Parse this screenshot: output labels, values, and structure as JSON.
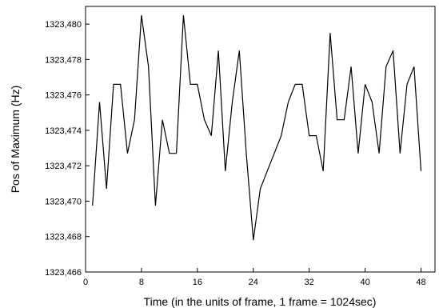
{
  "chart_data": {
    "type": "line",
    "title": "",
    "xlabel": "Time (in the units of frame, 1 frame = 1024sec)",
    "ylabel": "Pos of Maximum (Hz)",
    "xlim": [
      0,
      50
    ],
    "ylim": [
      1323466,
      1323481
    ],
    "xticks": [
      0,
      8,
      16,
      24,
      32,
      40,
      48
    ],
    "xtick_labels": [
      "0",
      "8",
      "16",
      "24",
      "32",
      "40",
      "48"
    ],
    "yticks": [
      1323466,
      1323468,
      1323470,
      1323472,
      1323474,
      1323476,
      1323478,
      1323480
    ],
    "ytick_labels": [
      "1323,466",
      "1323,468",
      "1323,470",
      "1323,472",
      "1323,474",
      "1323,476",
      "1323,478",
      "1323,480"
    ],
    "grid": false,
    "line_color": "#000000",
    "series": [
      {
        "x": [
          1,
          2,
          3,
          4,
          5,
          6,
          7,
          8,
          9,
          10,
          11,
          12,
          13,
          14,
          15,
          16,
          17,
          18,
          19,
          20,
          21,
          22,
          23,
          24,
          25,
          26,
          27,
          28,
          29,
          30,
          31,
          32,
          33,
          34,
          35,
          36,
          37,
          38,
          39,
          40,
          41,
          42,
          43,
          44,
          45,
          46,
          47,
          48
        ],
        "values": [
          1323469.75,
          1323475.6,
          1323470.7,
          1323476.6,
          1323476.6,
          1323472.7,
          1323474.6,
          1323480.5,
          1323477.6,
          1323469.75,
          1323474.6,
          1323472.7,
          1323472.7,
          1323480.5,
          1323476.6,
          1323476.6,
          1323474.6,
          1323473.7,
          1323478.5,
          1323471.7,
          1323475.6,
          1323478.5,
          1323472.7,
          1323467.8,
          1323470.7,
          1323471.7,
          1323472.7,
          1323473.7,
          1323475.6,
          1323476.6,
          1323476.6,
          1323473.7,
          1323473.7,
          1323471.7,
          1323479.5,
          1323474.6,
          1323474.6,
          1323477.6,
          1323472.7,
          1323476.6,
          1323475.6,
          1323472.7,
          1323477.6,
          1323478.5,
          1323472.7,
          1323476.6,
          1323477.6,
          1323471.7
        ]
      }
    ]
  }
}
